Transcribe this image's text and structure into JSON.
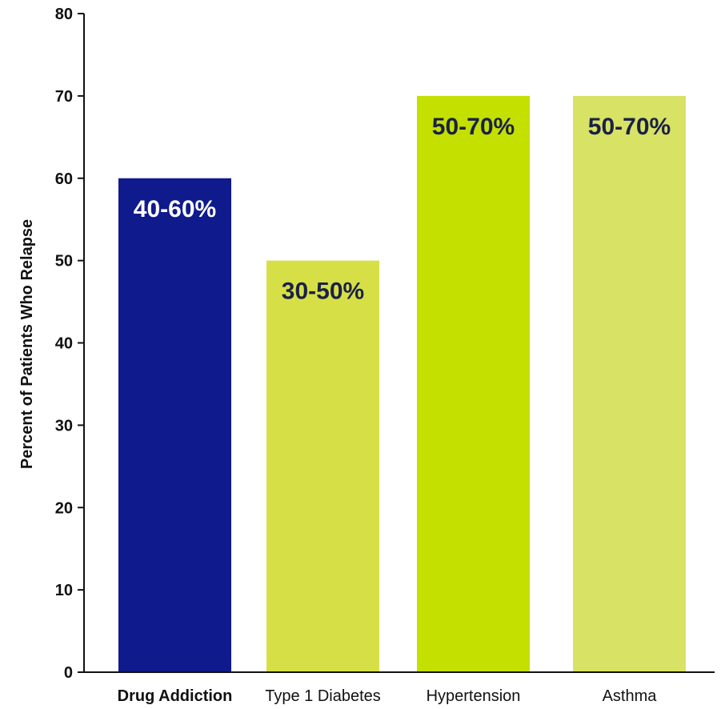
{
  "chart_data": {
    "type": "bar",
    "title": "",
    "xlabel": "",
    "ylabel": "Percent of Patients Who Relapse",
    "ylim": [
      0,
      80
    ],
    "yticks": [
      0,
      10,
      20,
      30,
      40,
      50,
      60,
      70,
      80
    ],
    "grid": false,
    "legend": "none",
    "categories": [
      "Drug Addiction",
      "Type 1 Diabetes",
      "Hypertension",
      "Asthma"
    ],
    "values": [
      60,
      50,
      70,
      70
    ],
    "data_labels": [
      "40-60%",
      "30-50%",
      "50-70%",
      "50-70%"
    ],
    "bar_colors": [
      "#0f1a8c",
      "#d6e046",
      "#c4e000",
      "#d8e264"
    ],
    "label_colors": [
      "#ffffff",
      "#1a2147",
      "#1a2147",
      "#1a2147"
    ],
    "bold_categories": [
      "Drug Addiction"
    ]
  }
}
